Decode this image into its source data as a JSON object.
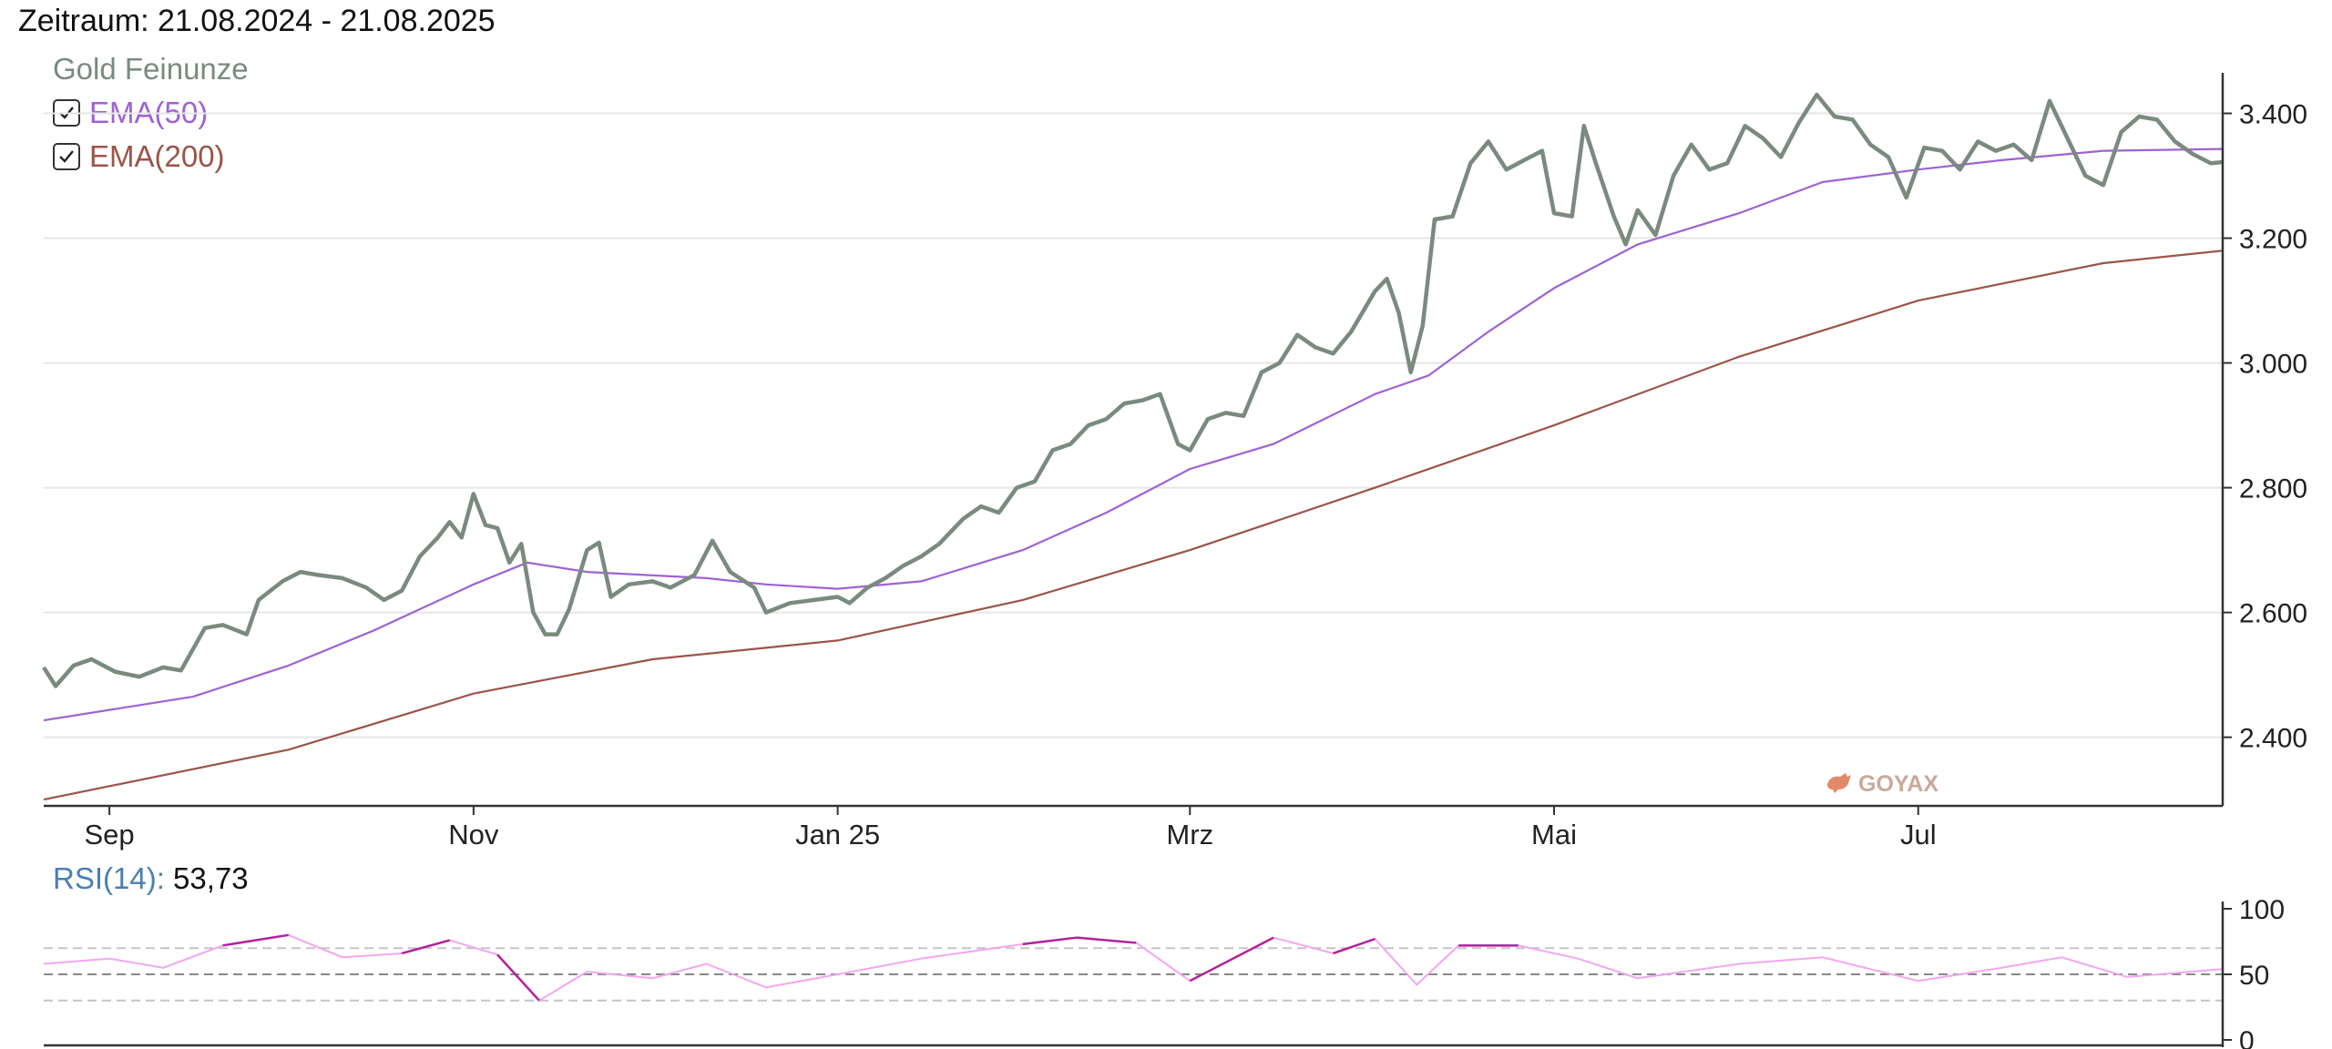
{
  "header": {
    "period": "Zeitraum: 21.08.2024 - 21.08.2025"
  },
  "legend": {
    "price_name": "Gold Feinunze",
    "ema50": {
      "label": "EMA(50)",
      "checked": true
    },
    "ema200": {
      "label": "EMA(200)",
      "checked": true
    }
  },
  "rsi": {
    "label": "RSI(14):",
    "value": "53,73"
  },
  "watermark": "GOYAX",
  "colors": {
    "price": "#7a8a7f",
    "ema50": "#9e62d4",
    "ema200": "#9b5448",
    "rsi_normal": "#f3a6f0",
    "rsi_extreme": "#b3209a",
    "grid": "#e6e6e6",
    "watermark": "#e2896a"
  },
  "chart_data": [
    {
      "type": "line",
      "title": "Gold Feinunze",
      "x_ticks": [
        "Sep",
        "Nov",
        "Jan 25",
        "Mrz",
        "Mai",
        "Jul"
      ],
      "y_ticks": [
        "2.400",
        "2.600",
        "2.800",
        "3.000",
        "3.200",
        "3.400"
      ],
      "y_tick_values": [
        2400,
        2600,
        2800,
        3000,
        3200,
        3400
      ],
      "ylim": [
        2290,
        3465
      ],
      "grid": true,
      "dates_note_x_axis": "2024-08-21 to 2025-08-21",
      "series": [
        {
          "name": "Gold Feinunze",
          "points": [
            [
              "2024-08-21",
              2512
            ],
            [
              "2024-08-23",
              2482
            ],
            [
              "2024-08-26",
              2515
            ],
            [
              "2024-08-29",
              2525
            ],
            [
              "2024-09-02",
              2505
            ],
            [
              "2024-09-06",
              2497
            ],
            [
              "2024-09-10",
              2512
            ],
            [
              "2024-09-13",
              2507
            ],
            [
              "2024-09-17",
              2575
            ],
            [
              "2024-09-20",
              2580
            ],
            [
              "2024-09-24",
              2565
            ],
            [
              "2024-09-26",
              2620
            ],
            [
              "2024-09-30",
              2650
            ],
            [
              "2024-10-03",
              2665
            ],
            [
              "2024-10-06",
              2660
            ],
            [
              "2024-10-10",
              2655
            ],
            [
              "2024-10-14",
              2640
            ],
            [
              "2024-10-17",
              2620
            ],
            [
              "2024-10-20",
              2635
            ],
            [
              "2024-10-23",
              2690
            ],
            [
              "2024-10-26",
              2720
            ],
            [
              "2024-10-28",
              2745
            ],
            [
              "2024-10-30",
              2720
            ],
            [
              "2024-11-01",
              2790
            ],
            [
              "2024-11-03",
              2740
            ],
            [
              "2024-11-05",
              2735
            ],
            [
              "2024-11-07",
              2680
            ],
            [
              "2024-11-09",
              2710
            ],
            [
              "2024-11-11",
              2600
            ],
            [
              "2024-11-13",
              2565
            ],
            [
              "2024-11-15",
              2565
            ],
            [
              "2024-11-17",
              2605
            ],
            [
              "2024-11-20",
              2700
            ],
            [
              "2024-11-22",
              2712
            ],
            [
              "2024-11-24",
              2625
            ],
            [
              "2024-11-27",
              2645
            ],
            [
              "2024-12-01",
              2650
            ],
            [
              "2024-12-04",
              2640
            ],
            [
              "2024-12-08",
              2660
            ],
            [
              "2024-12-11",
              2715
            ],
            [
              "2024-12-14",
              2665
            ],
            [
              "2024-12-18",
              2640
            ],
            [
              "2024-12-20",
              2600
            ],
            [
              "2024-12-24",
              2615
            ],
            [
              "2024-12-28",
              2620
            ],
            [
              "2025-01-01",
              2625
            ],
            [
              "2025-01-03",
              2615
            ],
            [
              "2025-01-06",
              2640
            ],
            [
              "2025-01-09",
              2655
            ],
            [
              "2025-01-12",
              2675
            ],
            [
              "2025-01-15",
              2690
            ],
            [
              "2025-01-18",
              2710
            ],
            [
              "2025-01-22",
              2750
            ],
            [
              "2025-01-25",
              2770
            ],
            [
              "2025-01-28",
              2760
            ],
            [
              "2025-01-31",
              2800
            ],
            [
              "2025-02-03",
              2810
            ],
            [
              "2025-02-06",
              2860
            ],
            [
              "2025-02-09",
              2870
            ],
            [
              "2025-02-12",
              2900
            ],
            [
              "2025-02-15",
              2910
            ],
            [
              "2025-02-18",
              2935
            ],
            [
              "2025-02-21",
              2940
            ],
            [
              "2025-02-24",
              2950
            ],
            [
              "2025-02-27",
              2870
            ],
            [
              "2025-03-01",
              2860
            ],
            [
              "2025-03-04",
              2910
            ],
            [
              "2025-03-07",
              2920
            ],
            [
              "2025-03-10",
              2915
            ],
            [
              "2025-03-13",
              2985
            ],
            [
              "2025-03-16",
              3000
            ],
            [
              "2025-03-19",
              3045
            ],
            [
              "2025-03-22",
              3025
            ],
            [
              "2025-03-25",
              3015
            ],
            [
              "2025-03-28",
              3050
            ],
            [
              "2025-04-01",
              3115
            ],
            [
              "2025-04-03",
              3135
            ],
            [
              "2025-04-05",
              3080
            ],
            [
              "2025-04-07",
              2985
            ],
            [
              "2025-04-09",
              3060
            ],
            [
              "2025-04-11",
              3230
            ],
            [
              "2025-04-14",
              3235
            ],
            [
              "2025-04-17",
              3320
            ],
            [
              "2025-04-20",
              3355
            ],
            [
              "2025-04-23",
              3310
            ],
            [
              "2025-04-26",
              3325
            ],
            [
              "2025-04-29",
              3340
            ],
            [
              "2025-05-01",
              3240
            ],
            [
              "2025-05-04",
              3235
            ],
            [
              "2025-05-06",
              3380
            ],
            [
              "2025-05-08",
              3320
            ],
            [
              "2025-05-11",
              3235
            ],
            [
              "2025-05-13",
              3190
            ],
            [
              "2025-05-15",
              3245
            ],
            [
              "2025-05-18",
              3205
            ],
            [
              "2025-05-21",
              3300
            ],
            [
              "2025-05-24",
              3350
            ],
            [
              "2025-05-27",
              3310
            ],
            [
              "2025-05-30",
              3320
            ],
            [
              "2025-06-02",
              3380
            ],
            [
              "2025-06-05",
              3360
            ],
            [
              "2025-06-08",
              3330
            ],
            [
              "2025-06-11",
              3385
            ],
            [
              "2025-06-14",
              3430
            ],
            [
              "2025-06-17",
              3395
            ],
            [
              "2025-06-20",
              3390
            ],
            [
              "2025-06-23",
              3350
            ],
            [
              "2025-06-26",
              3330
            ],
            [
              "2025-06-29",
              3265
            ],
            [
              "2025-07-02",
              3345
            ],
            [
              "2025-07-05",
              3340
            ],
            [
              "2025-07-08",
              3310
            ],
            [
              "2025-07-11",
              3355
            ],
            [
              "2025-07-14",
              3340
            ],
            [
              "2025-07-17",
              3350
            ],
            [
              "2025-07-20",
              3325
            ],
            [
              "2025-07-23",
              3420
            ],
            [
              "2025-07-26",
              3360
            ],
            [
              "2025-07-29",
              3300
            ],
            [
              "2025-08-01",
              3285
            ],
            [
              "2025-08-04",
              3370
            ],
            [
              "2025-08-07",
              3395
            ],
            [
              "2025-08-10",
              3390
            ],
            [
              "2025-08-13",
              3355
            ],
            [
              "2025-08-16",
              3335
            ],
            [
              "2025-08-19",
              3320
            ],
            [
              "2025-08-21",
              3322
            ]
          ]
        },
        {
          "name": "EMA(50)",
          "points": [
            [
              "2024-08-21",
              2427
            ],
            [
              "2024-09-15",
              2465
            ],
            [
              "2024-10-01",
              2515
            ],
            [
              "2024-10-15",
              2570
            ],
            [
              "2024-11-01",
              2645
            ],
            [
              "2024-11-10",
              2680
            ],
            [
              "2024-11-20",
              2665
            ],
            [
              "2024-12-10",
              2655
            ],
            [
              "2024-12-20",
              2645
            ],
            [
              "2025-01-01",
              2638
            ],
            [
              "2025-01-15",
              2650
            ],
            [
              "2025-02-01",
              2700
            ],
            [
              "2025-02-15",
              2760
            ],
            [
              "2025-03-01",
              2830
            ],
            [
              "2025-03-15",
              2870
            ],
            [
              "2025-04-01",
              2950
            ],
            [
              "2025-04-10",
              2980
            ],
            [
              "2025-04-20",
              3050
            ],
            [
              "2025-05-01",
              3120
            ],
            [
              "2025-05-15",
              3190
            ],
            [
              "2025-06-01",
              3240
            ],
            [
              "2025-06-15",
              3290
            ],
            [
              "2025-07-01",
              3310
            ],
            [
              "2025-07-15",
              3325
            ],
            [
              "2025-08-01",
              3340
            ],
            [
              "2025-08-21",
              3343
            ]
          ]
        },
        {
          "name": "EMA(200)",
          "points": [
            [
              "2024-08-21",
              2300
            ],
            [
              "2024-10-01",
              2380
            ],
            [
              "2024-11-01",
              2470
            ],
            [
              "2024-12-01",
              2525
            ],
            [
              "2025-01-01",
              2555
            ],
            [
              "2025-02-01",
              2620
            ],
            [
              "2025-03-01",
              2700
            ],
            [
              "2025-04-01",
              2800
            ],
            [
              "2025-05-01",
              2900
            ],
            [
              "2025-06-01",
              3010
            ],
            [
              "2025-07-01",
              3100
            ],
            [
              "2025-08-01",
              3160
            ],
            [
              "2025-08-21",
              3180
            ]
          ]
        }
      ]
    },
    {
      "type": "line",
      "title": "RSI(14)",
      "ylim": [
        0,
        100
      ],
      "y_ticks": [
        "0",
        "50",
        "100"
      ],
      "y_tick_values": [
        0,
        50,
        100
      ],
      "reference_lines": [
        30,
        50,
        70
      ],
      "series": [
        {
          "name": "RSI(14)",
          "points": [
            [
              "2024-08-21",
              58
            ],
            [
              "2024-09-01",
              62
            ],
            [
              "2024-09-10",
              55
            ],
            [
              "2024-09-20",
              72
            ],
            [
              "2024-10-01",
              80
            ],
            [
              "2024-10-10",
              63
            ],
            [
              "2024-10-20",
              66
            ],
            [
              "2024-10-28",
              76
            ],
            [
              "2024-11-05",
              65
            ],
            [
              "2024-11-12",
              30
            ],
            [
              "2024-11-20",
              52
            ],
            [
              "2024-12-01",
              47
            ],
            [
              "2024-12-10",
              58
            ],
            [
              "2024-12-20",
              40
            ],
            [
              "2025-01-01",
              50
            ],
            [
              "2025-01-15",
              62
            ],
            [
              "2025-02-01",
              73
            ],
            [
              "2025-02-10",
              78
            ],
            [
              "2025-02-20",
              74
            ],
            [
              "2025-03-01",
              45
            ],
            [
              "2025-03-15",
              78
            ],
            [
              "2025-03-25",
              66
            ],
            [
              "2025-04-01",
              77
            ],
            [
              "2025-04-08",
              42
            ],
            [
              "2025-04-15",
              72
            ],
            [
              "2025-04-25",
              72
            ],
            [
              "2025-05-05",
              62
            ],
            [
              "2025-05-15",
              47
            ],
            [
              "2025-06-01",
              58
            ],
            [
              "2025-06-15",
              63
            ],
            [
              "2025-07-01",
              45
            ],
            [
              "2025-07-15",
              55
            ],
            [
              "2025-07-25",
              63
            ],
            [
              "2025-08-05",
              48
            ],
            [
              "2025-08-21",
              54
            ]
          ]
        }
      ]
    }
  ]
}
